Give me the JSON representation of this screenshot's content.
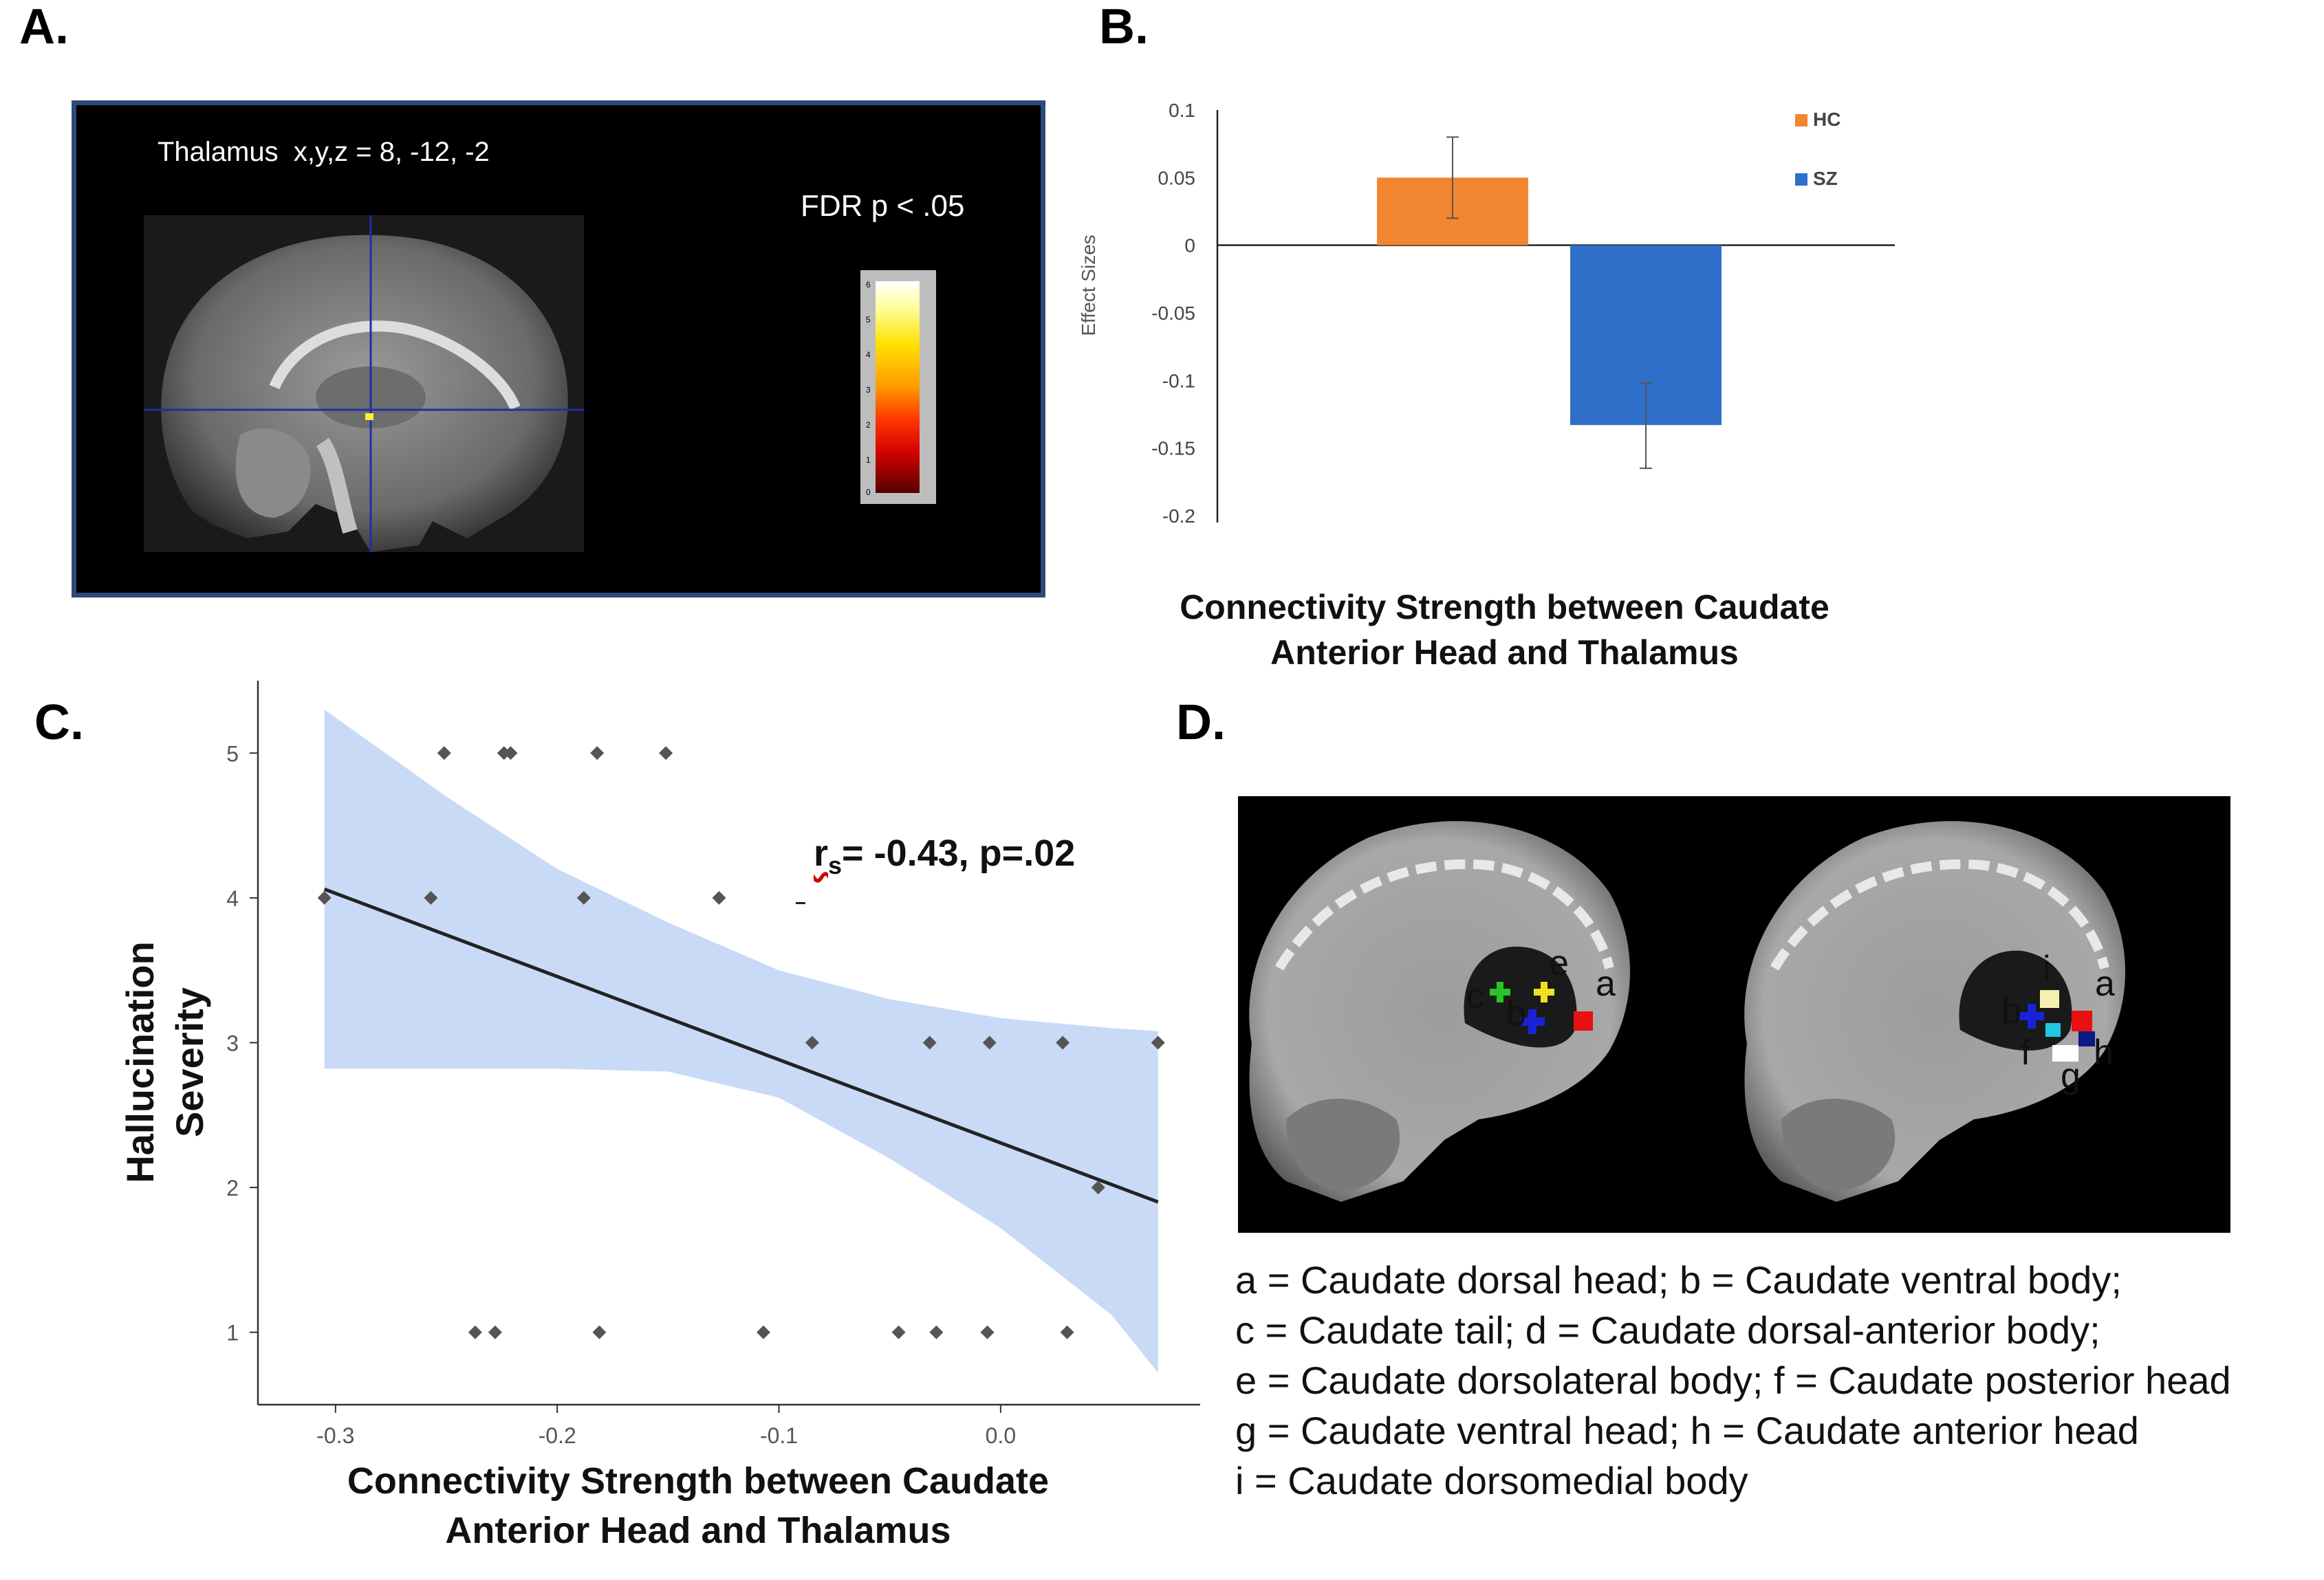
{
  "labels": {
    "a": "A.",
    "b": "B.",
    "c": "C.",
    "d": "D."
  },
  "panel_a": {
    "region_label": "Thalamus  x,y,z = 8, -12, -2",
    "threshold_label": "FDR p < .05",
    "colorbar_ticks": [
      "6",
      "5",
      "4",
      "3",
      "2",
      "1",
      "0"
    ],
    "colors": {
      "crosshair": "#1f2fa8",
      "frame": "#2c4a7a"
    }
  },
  "chart_data": [
    {
      "type": "bar",
      "panel": "B",
      "categories": [
        "HC",
        "SZ"
      ],
      "values": [
        0.05,
        -0.133
      ],
      "error_bars": [
        [
          0.02,
          0.08
        ],
        [
          -0.165,
          -0.102
        ]
      ],
      "colors": [
        "#f28530",
        "#2f6fca"
      ],
      "ylabel": "Effect Sizes",
      "ylim": [
        -0.2,
        0.1
      ],
      "yticks": [
        "0.1",
        "0.05",
        "0",
        "-0.05",
        "-0.1",
        "-0.15",
        "-0.2"
      ],
      "ytick_values": [
        0.1,
        0.05,
        0,
        -0.05,
        -0.1,
        -0.15,
        -0.2
      ],
      "legend": [
        {
          "name": "HC",
          "color": "#f28530"
        },
        {
          "name": "SZ",
          "color": "#2f6fca"
        }
      ],
      "legend_position": "top-right",
      "xlabel": [
        "Connectivity Strength between Caudate",
        "Anterior Head and Thalamus"
      ]
    },
    {
      "type": "scatter",
      "panel": "C",
      "xlabel": [
        "Connectivity Strength between Caudate",
        "Anterior Head and Thalamus"
      ],
      "ylabel": [
        "Hallucination",
        "Severity"
      ],
      "xlim": [
        -0.335,
        0.09
      ],
      "ylim": [
        0.5,
        5.5
      ],
      "xticks": [
        "-0.3",
        "-0.2",
        "-0.1",
        "0.0"
      ],
      "xtick_values": [
        -0.3,
        -0.2,
        -0.1,
        0.0
      ],
      "yticks": [
        "1",
        "2",
        "3",
        "4",
        "5"
      ],
      "ytick_values": [
        1,
        2,
        3,
        4,
        5
      ],
      "points": [
        [
          -0.305,
          4
        ],
        [
          -0.251,
          5
        ],
        [
          -0.257,
          4
        ],
        [
          -0.224,
          5
        ],
        [
          -0.221,
          5
        ],
        [
          -0.182,
          5
        ],
        [
          -0.188,
          4
        ],
        [
          -0.151,
          5
        ],
        [
          -0.127,
          4
        ],
        [
          -0.085,
          3
        ],
        [
          -0.032,
          3
        ],
        [
          -0.005,
          3
        ],
        [
          0.028,
          3
        ],
        [
          0.071,
          3
        ],
        [
          0.044,
          2
        ],
        [
          -0.237,
          1
        ],
        [
          -0.228,
          1
        ],
        [
          -0.181,
          1
        ],
        [
          -0.107,
          1
        ],
        [
          -0.046,
          1
        ],
        [
          -0.029,
          1
        ],
        [
          -0.006,
          1
        ],
        [
          0.03,
          1
        ]
      ],
      "regression": {
        "x": [
          -0.305,
          0.071
        ],
        "y": [
          4.06,
          1.9
        ]
      },
      "confidence_band": {
        "x": [
          -0.305,
          -0.25,
          -0.2,
          -0.15,
          -0.1,
          -0.05,
          0.0,
          0.05,
          0.071
        ],
        "upper": [
          5.3,
          4.7,
          4.2,
          3.83,
          3.5,
          3.3,
          3.17,
          3.1,
          3.08
        ],
        "lower": [
          2.82,
          2.82,
          2.82,
          2.8,
          2.62,
          2.2,
          1.72,
          1.12,
          0.72
        ]
      },
      "annotation": {
        "r": "r",
        "sub": "s",
        "text": "= -0.43, p=.02"
      },
      "colors": {
        "band": "#c9daf6",
        "line": "#222222",
        "points": "#555555"
      }
    }
  ],
  "panel_d": {
    "markers": [
      {
        "id": "a",
        "brain": 1,
        "color": "#e81010"
      },
      {
        "id": "b",
        "brain": 1,
        "color": "#1a22d8"
      },
      {
        "id": "c",
        "brain": 1,
        "color": "#28c428"
      },
      {
        "id": "e",
        "brain": 1,
        "color": "#f2e020"
      },
      {
        "id": "i",
        "brain": 2,
        "color": "#f4f0b0"
      },
      {
        "id": "a",
        "brain": 2,
        "color": "#e81010"
      },
      {
        "id": "b",
        "brain": 2,
        "color": "#1a22d8"
      },
      {
        "id": "f",
        "brain": 2,
        "color": "#20c8e0"
      },
      {
        "id": "g",
        "brain": 2,
        "color": "#ffffff"
      },
      {
        "id": "h",
        "brain": 2,
        "color": "#0a1a80"
      }
    ],
    "legend": [
      "a = Caudate dorsal head; b = Caudate ventral body;",
      "c = Caudate tail; d = Caudate dorsal-anterior body;",
      "e = Caudate dorsolateral body; f = Caudate posterior head",
      "g = Caudate ventral head; h = Caudate anterior head",
      "i = Caudate dorsomedial body"
    ]
  }
}
